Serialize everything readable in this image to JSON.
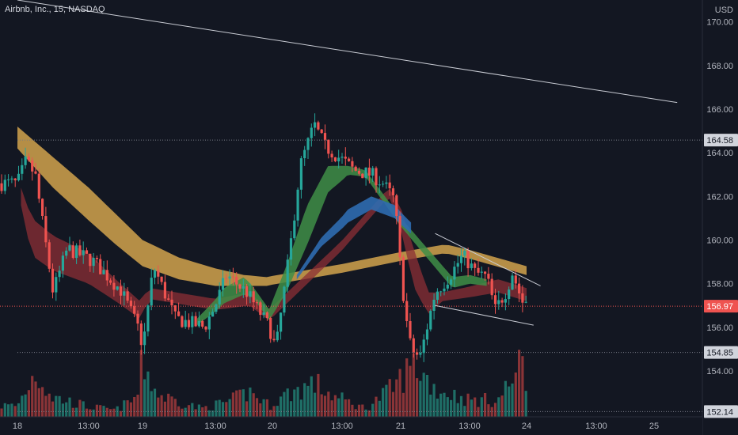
{
  "header": {
    "title": "Airbnb, Inc., 15, NASDAQ"
  },
  "colors": {
    "background": "#131722",
    "up": "#26a69a",
    "down": "#ef5350",
    "up_volume": "#1f6e66",
    "down_volume": "#8a3437",
    "gold_band": "#c89b4a",
    "red_band": "#8c2f36",
    "green_band": "#3f8e47",
    "blue_band": "#2f6cb0",
    "trendline": "#c9ccd4",
    "last_price_line": "#ef5350",
    "level_line": "#787b86"
  },
  "chart_data": {
    "type": "candlestick",
    "title": "Airbnb, Inc., 15, NASDAQ",
    "currency": "USD",
    "ylim": [
      151.9,
      171.0
    ],
    "y_ticks": [
      154.0,
      156.0,
      158.0,
      160.0,
      162.0,
      164.0,
      166.0,
      168.0,
      170.0
    ],
    "x_ticks": [
      "18",
      "13:00",
      "19",
      "13:00",
      "20",
      "13:00",
      "21",
      "13:00",
      "24",
      "13:00",
      "25"
    ],
    "price_labels": {
      "last_price": 156.97,
      "levels": [
        164.58,
        154.85,
        152.14
      ]
    },
    "candle_close_path": [
      {
        "t": 0.0,
        "p": 162.6
      },
      {
        "t": 0.12,
        "p": 163.6
      },
      {
        "t": 0.25,
        "p": 163.0
      },
      {
        "t": 0.5,
        "p": 157.6
      },
      {
        "t": 0.7,
        "p": 159.6
      },
      {
        "t": 1.1,
        "p": 159.0
      },
      {
        "t": 1.6,
        "p": 157.7
      },
      {
        "t": 1.95,
        "p": 155.8
      },
      {
        "t": 2.0,
        "p": 155.0
      },
      {
        "t": 2.15,
        "p": 158.8
      },
      {
        "t": 2.45,
        "p": 156.4
      },
      {
        "t": 2.85,
        "p": 156.0
      },
      {
        "t": 3.2,
        "p": 158.4
      },
      {
        "t": 3.55,
        "p": 157.6
      },
      {
        "t": 3.95,
        "p": 156.0
      },
      {
        "t": 4.05,
        "p": 155.0
      },
      {
        "t": 4.25,
        "p": 159.5
      },
      {
        "t": 4.4,
        "p": 163.4
      },
      {
        "t": 4.6,
        "p": 165.3
      },
      {
        "t": 4.75,
        "p": 164.3
      },
      {
        "t": 4.95,
        "p": 163.8
      },
      {
        "t": 5.2,
        "p": 163.2
      },
      {
        "t": 5.5,
        "p": 163.0
      },
      {
        "t": 5.7,
        "p": 162.6
      },
      {
        "t": 5.9,
        "p": 161.8
      },
      {
        "t": 6.0,
        "p": 158.6
      },
      {
        "t": 6.08,
        "p": 156.4
      },
      {
        "t": 6.15,
        "p": 155.0
      },
      {
        "t": 6.28,
        "p": 154.6
      },
      {
        "t": 6.5,
        "p": 157.6
      },
      {
        "t": 6.7,
        "p": 158.3
      },
      {
        "t": 6.9,
        "p": 159.3
      },
      {
        "t": 7.1,
        "p": 158.5
      },
      {
        "t": 7.3,
        "p": 158.3
      },
      {
        "t": 7.45,
        "p": 156.8
      },
      {
        "t": 7.65,
        "p": 157.7
      },
      {
        "t": 7.75,
        "p": 158.5
      },
      {
        "t": 7.95,
        "p": 157.0
      },
      {
        "t": 8.0,
        "p": 157.3
      }
    ],
    "volume_profile": [
      {
        "t": 0.0,
        "v": 0.2
      },
      {
        "t": 0.25,
        "v": 0.8
      },
      {
        "t": 0.5,
        "v": 0.35
      },
      {
        "t": 1.0,
        "v": 0.18
      },
      {
        "t": 1.5,
        "v": 0.12
      },
      {
        "t": 1.9,
        "v": 0.35
      },
      {
        "t": 2.0,
        "v": 1.0
      },
      {
        "t": 2.2,
        "v": 0.4
      },
      {
        "t": 2.8,
        "v": 0.15
      },
      {
        "t": 3.3,
        "v": 0.3
      },
      {
        "t": 3.6,
        "v": 0.45
      },
      {
        "t": 3.95,
        "v": 0.2
      },
      {
        "t": 4.2,
        "v": 0.4
      },
      {
        "t": 4.6,
        "v": 0.6
      },
      {
        "t": 4.9,
        "v": 0.35
      },
      {
        "t": 5.4,
        "v": 0.15
      },
      {
        "t": 5.9,
        "v": 0.55
      },
      {
        "t": 6.2,
        "v": 0.95
      },
      {
        "t": 6.5,
        "v": 0.5
      },
      {
        "t": 7.0,
        "v": 0.3
      },
      {
        "t": 7.5,
        "v": 0.3
      },
      {
        "t": 7.8,
        "v": 0.75
      },
      {
        "t": 7.95,
        "v": 1.0
      },
      {
        "t": 8.0,
        "v": 0.45
      }
    ],
    "indicators": {
      "gold_band": [
        {
          "t": 0.0,
          "a": 165.2,
          "b": 164.2
        },
        {
          "t": 0.5,
          "a": 163.8,
          "b": 162.4
        },
        {
          "t": 1.0,
          "a": 162.4,
          "b": 160.9
        },
        {
          "t": 1.5,
          "a": 161.2,
          "b": 159.8
        },
        {
          "t": 2.0,
          "a": 160.0,
          "b": 158.8
        },
        {
          "t": 2.5,
          "a": 159.2,
          "b": 158.2
        },
        {
          "t": 3.0,
          "a": 158.7,
          "b": 157.9
        },
        {
          "t": 3.5,
          "a": 158.4,
          "b": 157.9
        },
        {
          "t": 3.9,
          "a": 158.3,
          "b": 157.9
        },
        {
          "t": 6.65,
          "a": 159.8,
          "b": 159.4
        },
        {
          "t": 7.2,
          "a": 159.4,
          "b": 159.0
        },
        {
          "t": 8.0,
          "a": 158.8,
          "b": 158.4
        }
      ],
      "red_band": [
        {
          "t": 0.05,
          "a": 162.4,
          "b": 161.6
        },
        {
          "t": 0.2,
          "a": 161.0,
          "b": 159.3
        },
        {
          "t": 0.5,
          "a": 160.2,
          "b": 158.6
        },
        {
          "t": 1.0,
          "a": 159.4,
          "b": 158.0
        },
        {
          "t": 1.5,
          "a": 158.2,
          "b": 157.2
        },
        {
          "t": 1.95,
          "a": 157.2,
          "b": 156.4
        },
        {
          "t": 2.1,
          "a": 157.8,
          "b": 157.3
        },
        {
          "t": 3.0,
          "a": 157.3,
          "b": 156.8
        },
        {
          "t": 3.6,
          "a": 157.6,
          "b": 157.0
        },
        {
          "t": 3.95,
          "a": 156.8,
          "b": 156.3
        },
        {
          "t": 5.8,
          "a": 162.4,
          "b": 162.0
        },
        {
          "t": 6.0,
          "a": 161.5,
          "b": 160.5
        },
        {
          "t": 6.2,
          "a": 159.5,
          "b": 157.8
        },
        {
          "t": 6.4,
          "a": 157.6,
          "b": 156.6
        },
        {
          "t": 6.6,
          "a": 157.6,
          "b": 157.2
        },
        {
          "t": 7.5,
          "a": 158.2,
          "b": 157.6
        },
        {
          "t": 8.0,
          "a": 157.8,
          "b": 157.2
        }
      ],
      "green_band": [
        {
          "t": 2.75,
          "a": 156.4,
          "b": 156.1
        },
        {
          "t": 3.15,
          "a": 157.8,
          "b": 157.1
        },
        {
          "t": 3.5,
          "a": 158.3,
          "b": 157.5
        },
        {
          "t": 3.65,
          "a": 157.9,
          "b": 157.4
        },
        {
          "t": 3.95,
          "a": 156.8,
          "b": 156.3
        },
        {
          "t": 4.2,
          "a": 158.8,
          "b": 157.6
        },
        {
          "t": 4.5,
          "a": 161.6,
          "b": 159.8
        },
        {
          "t": 4.8,
          "a": 163.4,
          "b": 162.2
        },
        {
          "t": 5.1,
          "a": 163.4,
          "b": 163.0
        },
        {
          "t": 5.4,
          "a": 163.2,
          "b": 162.9
        },
        {
          "t": 6.75,
          "a": 158.3,
          "b": 157.8
        },
        {
          "t": 7.0,
          "a": 158.4,
          "b": 158.0
        },
        {
          "t": 7.3,
          "a": 158.2,
          "b": 157.9
        }
      ],
      "blue_band": [
        {
          "t": 4.35,
          "a": 158.4,
          "b": 158.2
        },
        {
          "t": 4.7,
          "a": 160.1,
          "b": 159.7
        },
        {
          "t": 5.1,
          "a": 161.4,
          "b": 160.8
        },
        {
          "t": 5.5,
          "a": 162.0,
          "b": 161.4
        },
        {
          "t": 5.9,
          "a": 161.6,
          "b": 161.0
        },
        {
          "t": 6.15,
          "a": 160.8,
          "b": 160.3
        }
      ]
    },
    "drawings": {
      "trend_line": {
        "from": {
          "t": 0.0,
          "p": 171.0
        },
        "to": {
          "t": 10.4,
          "p": 166.3
        }
      },
      "channel_upper": {
        "from": {
          "t": 6.5,
          "p": 160.3
        },
        "to": {
          "t": 8.2,
          "p": 157.9
        }
      },
      "channel_lower": {
        "from": {
          "t": 6.5,
          "p": 157.0
        },
        "to": {
          "t": 8.1,
          "p": 156.1
        }
      }
    }
  }
}
